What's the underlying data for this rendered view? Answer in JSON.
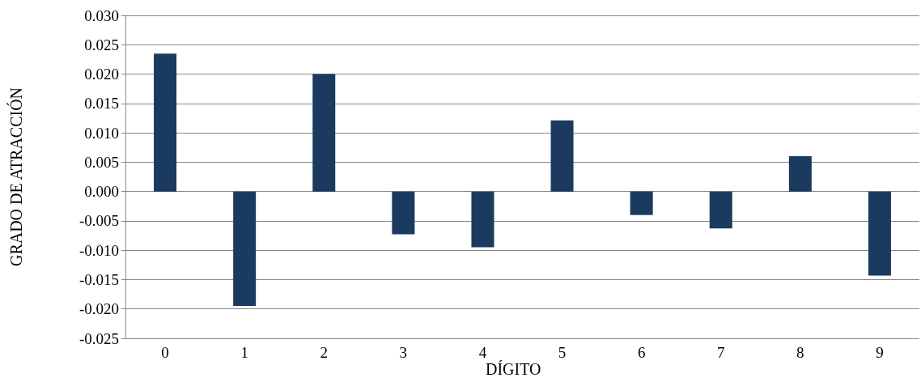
{
  "chart_data": {
    "type": "bar",
    "ylabel": "GRADO DE ATRACCIÓN",
    "xlabel": "DÍGITO",
    "categories": [
      "0",
      "1",
      "2",
      "3",
      "4",
      "5",
      "6",
      "7",
      "8",
      "9"
    ],
    "values": [
      0.0235,
      -0.0195,
      0.02,
      -0.0073,
      -0.0095,
      0.0121,
      -0.004,
      -0.0063,
      0.006,
      -0.0143
    ],
    "color": "#1a3a5f",
    "ylim": [
      -0.025,
      0.03
    ],
    "yticks": [
      {
        "value": -0.025,
        "label": "-0.025"
      },
      {
        "value": -0.02,
        "label": "-0.020"
      },
      {
        "value": -0.015,
        "label": "-0.015"
      },
      {
        "value": -0.01,
        "label": "-0.010"
      },
      {
        "value": -0.005,
        "label": "-0.005"
      },
      {
        "value": 0,
        "label": "0.000"
      },
      {
        "value": 0.005,
        "label": "0.005"
      },
      {
        "value": 0.01,
        "label": "0.010"
      },
      {
        "value": 0.015,
        "label": "0.015"
      },
      {
        "value": 0.02,
        "label": "0.020"
      },
      {
        "value": 0.025,
        "label": "0.025"
      },
      {
        "value": 0.03,
        "label": "0.030"
      }
    ],
    "grid": "y"
  }
}
